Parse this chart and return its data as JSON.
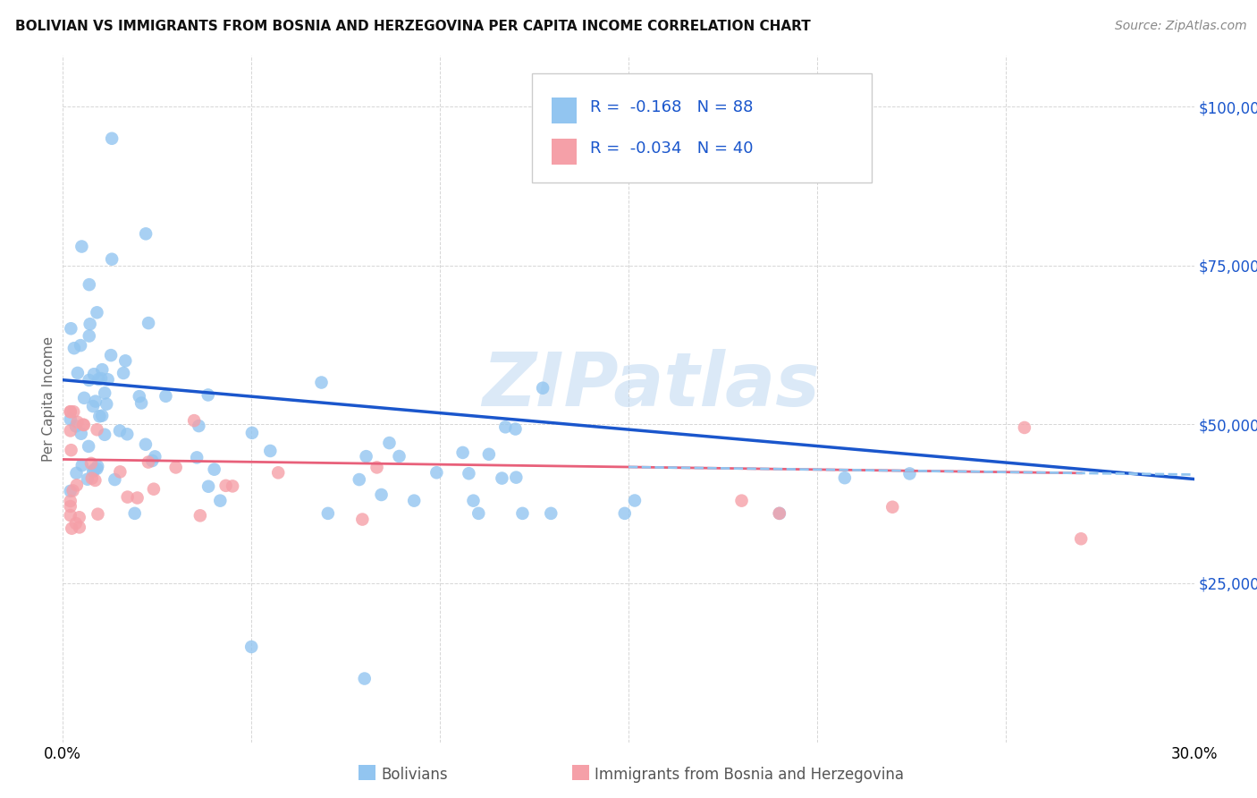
{
  "title": "BOLIVIAN VS IMMIGRANTS FROM BOSNIA AND HERZEGOVINA PER CAPITA INCOME CORRELATION CHART",
  "source": "Source: ZipAtlas.com",
  "ylabel": "Per Capita Income",
  "xmin": 0.0,
  "xmax": 0.3,
  "ymin": 0,
  "ymax": 108000,
  "blue_R": -0.168,
  "blue_N": 88,
  "pink_R": -0.034,
  "pink_N": 40,
  "blue_color": "#92C5F0",
  "pink_color": "#F5A0A8",
  "blue_line_color": "#1A56CC",
  "pink_line_color": "#E8607A",
  "dash_color": "#92C5F0",
  "watermark_text": "ZIPatlas",
  "watermark_color": "#B8D4F0",
  "legend1": "Bolivians",
  "legend2": "Immigrants from Bosnia and Herzegovina",
  "accent_color": "#1A56CC"
}
